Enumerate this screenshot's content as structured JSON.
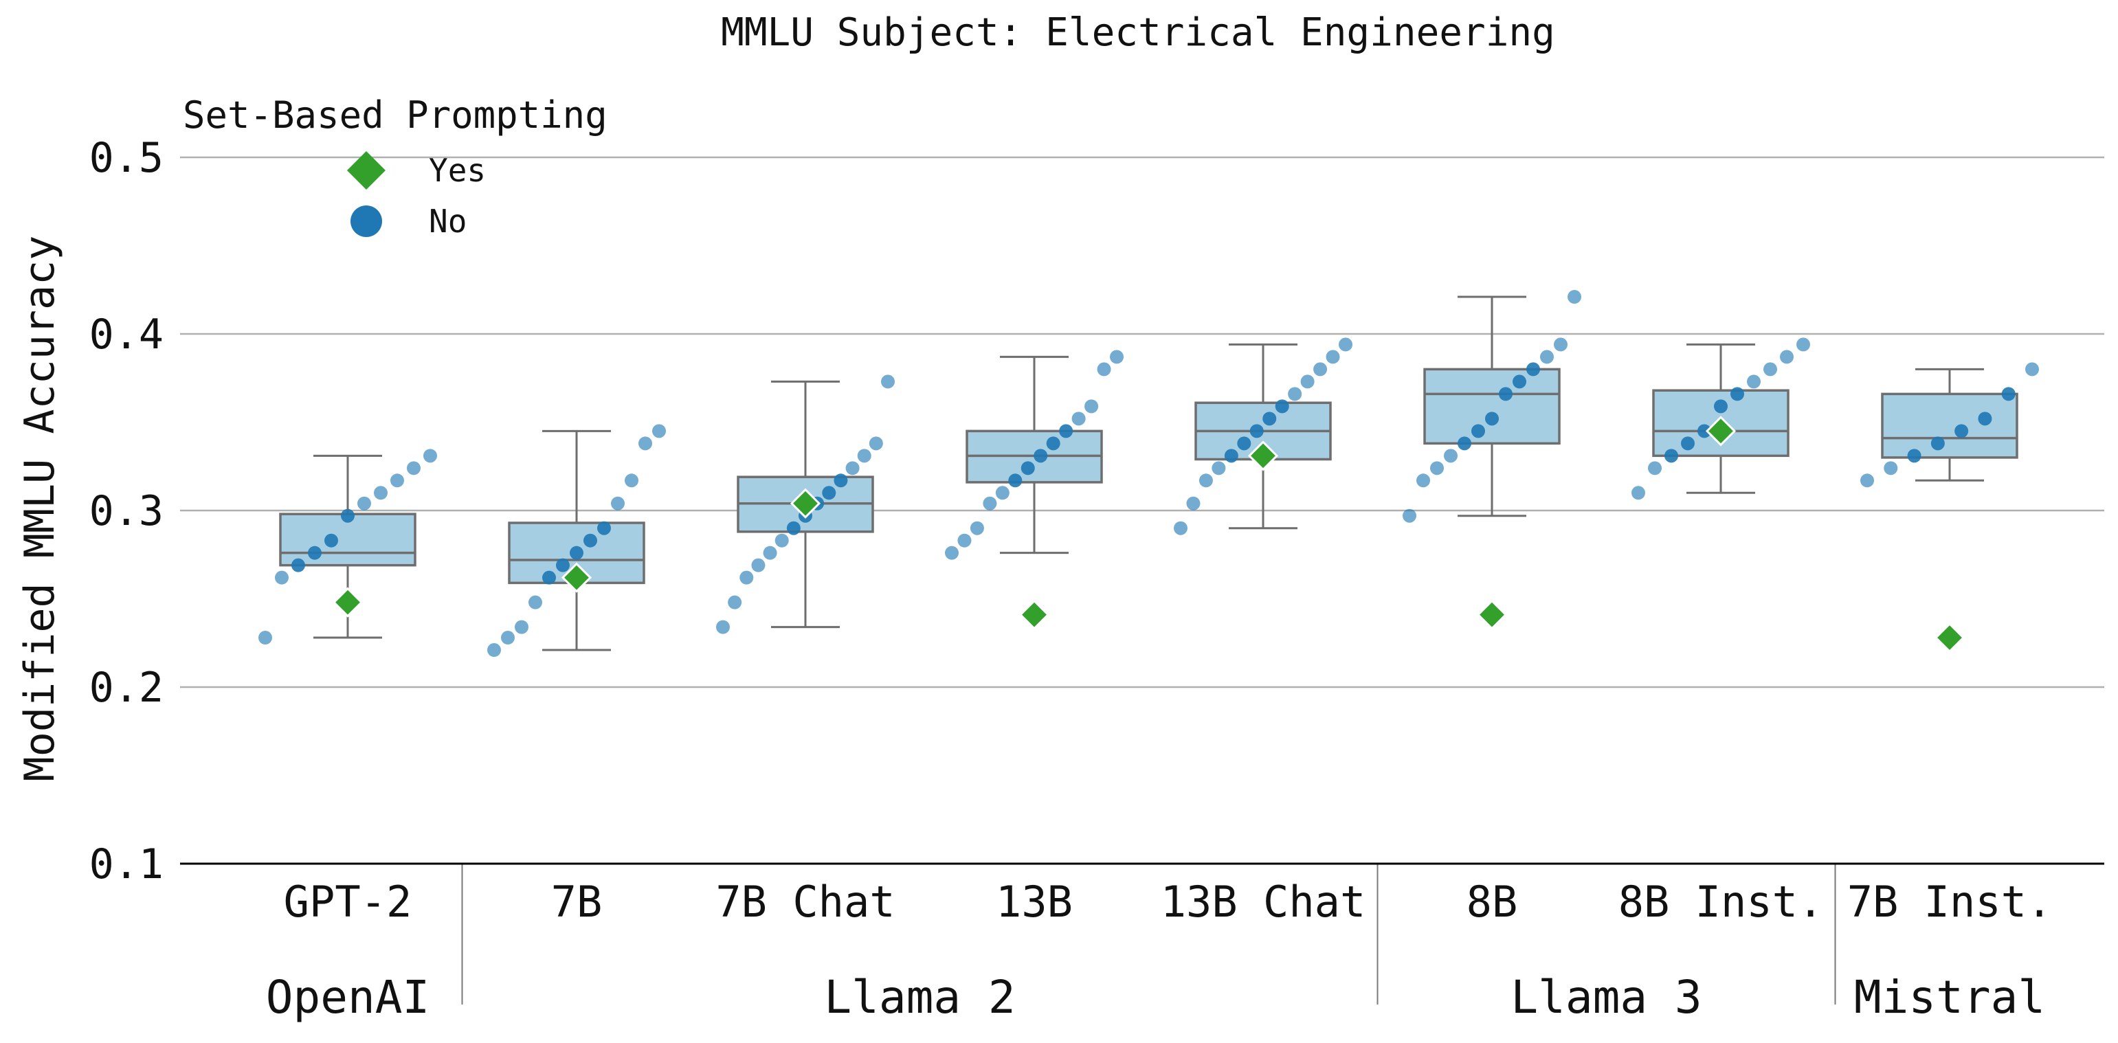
{
  "chart_data": {
    "type": "box",
    "title": "MMLU Subject: Electrical Engineering",
    "ylabel": "Modified MMLU Accuracy",
    "xlabel": "",
    "ylim": [
      0.1,
      0.52
    ],
    "yticks": [
      0.1,
      0.2,
      0.3,
      0.4,
      0.5
    ],
    "ytick_labels": [
      "0.1",
      "0.2",
      "0.3",
      "0.4",
      "0.5"
    ],
    "grid": "horizontal",
    "legend": {
      "title": "Set-Based Prompting",
      "placement": "top-left",
      "entries": [
        {
          "label": "Yes",
          "marker": "diamond",
          "color": "#33a02c"
        },
        {
          "label": "No",
          "marker": "circle",
          "color": "#1f78b4"
        }
      ]
    },
    "colors": {
      "box_fill": "#a6cee3",
      "box_stroke": "#6e6e6e",
      "no_points": "#1f78b4",
      "yes_marker": "#33a02c",
      "grid": "#b0b0b0",
      "axis": "#000000"
    },
    "groups": [
      {
        "label": "OpenAI",
        "categories": [
          "GPT-2"
        ]
      },
      {
        "label": "Llama 2",
        "categories": [
          "7B",
          "7B Chat",
          "13B",
          "13B Chat"
        ]
      },
      {
        "label": "Llama 3",
        "categories": [
          "8B",
          "8B Inst."
        ]
      },
      {
        "label": "Mistral",
        "categories": [
          "7B Inst."
        ]
      }
    ],
    "categories": [
      "GPT-2",
      "7B",
      "7B Chat",
      "13B",
      "13B Chat",
      "8B",
      "8B Inst.",
      "7B Inst."
    ],
    "boxes": [
      {
        "category": "GPT-2",
        "whisker_low": 0.228,
        "q1": 0.269,
        "median": 0.276,
        "q3": 0.298,
        "whisker_high": 0.331,
        "yes": 0.248,
        "no_points": [
          0.228,
          0.262,
          0.269,
          0.276,
          0.283,
          0.297,
          0.304,
          0.31,
          0.317,
          0.324,
          0.331
        ]
      },
      {
        "category": "7B",
        "whisker_low": 0.221,
        "q1": 0.259,
        "median": 0.272,
        "q3": 0.293,
        "whisker_high": 0.345,
        "yes": 0.262,
        "no_points": [
          0.221,
          0.228,
          0.234,
          0.248,
          0.262,
          0.269,
          0.276,
          0.283,
          0.29,
          0.304,
          0.317,
          0.338,
          0.345
        ]
      },
      {
        "category": "7B Chat",
        "whisker_low": 0.234,
        "q1": 0.288,
        "median": 0.304,
        "q3": 0.319,
        "whisker_high": 0.373,
        "yes": 0.304,
        "no_points": [
          0.234,
          0.248,
          0.262,
          0.269,
          0.276,
          0.283,
          0.29,
          0.297,
          0.304,
          0.31,
          0.317,
          0.324,
          0.331,
          0.338,
          0.373
        ]
      },
      {
        "category": "13B",
        "whisker_low": 0.276,
        "q1": 0.316,
        "median": 0.331,
        "q3": 0.345,
        "whisker_high": 0.387,
        "yes": 0.241,
        "no_points": [
          0.276,
          0.283,
          0.29,
          0.304,
          0.31,
          0.317,
          0.324,
          0.331,
          0.338,
          0.345,
          0.352,
          0.359,
          0.38,
          0.387
        ]
      },
      {
        "category": "13B Chat",
        "whisker_low": 0.29,
        "q1": 0.329,
        "median": 0.345,
        "q3": 0.361,
        "whisker_high": 0.394,
        "yes": 0.331,
        "no_points": [
          0.29,
          0.304,
          0.317,
          0.324,
          0.331,
          0.338,
          0.345,
          0.352,
          0.359,
          0.366,
          0.373,
          0.38,
          0.387,
          0.394
        ]
      },
      {
        "category": "8B",
        "whisker_low": 0.297,
        "q1": 0.338,
        "median": 0.366,
        "q3": 0.38,
        "whisker_high": 0.421,
        "yes": 0.241,
        "no_points": [
          0.297,
          0.317,
          0.324,
          0.331,
          0.338,
          0.345,
          0.352,
          0.366,
          0.373,
          0.38,
          0.387,
          0.394,
          0.421
        ]
      },
      {
        "category": "8B Inst.",
        "whisker_low": 0.31,
        "q1": 0.331,
        "median": 0.345,
        "q3": 0.368,
        "whisker_high": 0.394,
        "yes": 0.345,
        "no_points": [
          0.31,
          0.324,
          0.331,
          0.338,
          0.345,
          0.359,
          0.366,
          0.373,
          0.38,
          0.387,
          0.394
        ]
      },
      {
        "category": "7B Inst.",
        "whisker_low": 0.317,
        "q1": 0.33,
        "median": 0.341,
        "q3": 0.366,
        "whisker_high": 0.38,
        "yes": 0.228,
        "no_points": [
          0.317,
          0.324,
          0.331,
          0.338,
          0.345,
          0.352,
          0.366,
          0.38
        ]
      }
    ]
  }
}
